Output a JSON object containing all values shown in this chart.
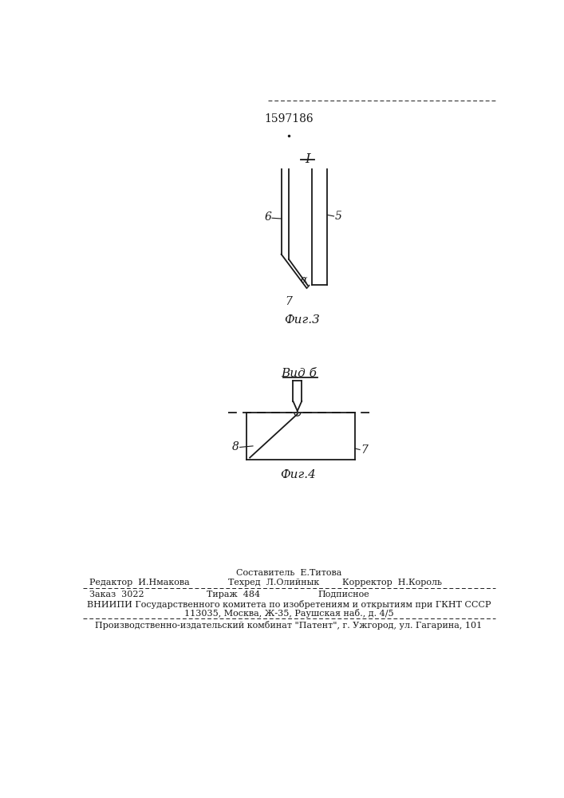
{
  "patent_number": "1597186",
  "bg_color": "#ffffff",
  "line_color": "#1a1a1a",
  "fig3_label": "I",
  "fig3_caption": "Фиг.3",
  "fig4_label": "Вид б",
  "fig4_caption": "Фиг.4",
  "label_5": "5",
  "label_6": "6",
  "label_7": "7",
  "label_7b": "7",
  "label_8": "8",
  "label_alpha": "α",
  "footer_line1": "Составитель  Е.Титова",
  "footer_line2_left": "Редактор  И.Нмакова",
  "footer_line2_mid": "Техред  Л.Олийнык",
  "footer_line2_right": "Корректор  Н.Король",
  "footer_line3_left": "Заказ  3022",
  "footer_line3_mid": "Тираж  484",
  "footer_line3_right": "Подписное",
  "footer_line4": "ВНИИПИ Государственного комитета по изобретениям и открытиям при ГКНТ СССР",
  "footer_line5": "113035, Москва, Ж-35, Раушская наб., д. 4/5",
  "footer_line6": "Производственно-издательский комбинат \"Патент\", г. Ужгород, ул. Гагарина, 101"
}
